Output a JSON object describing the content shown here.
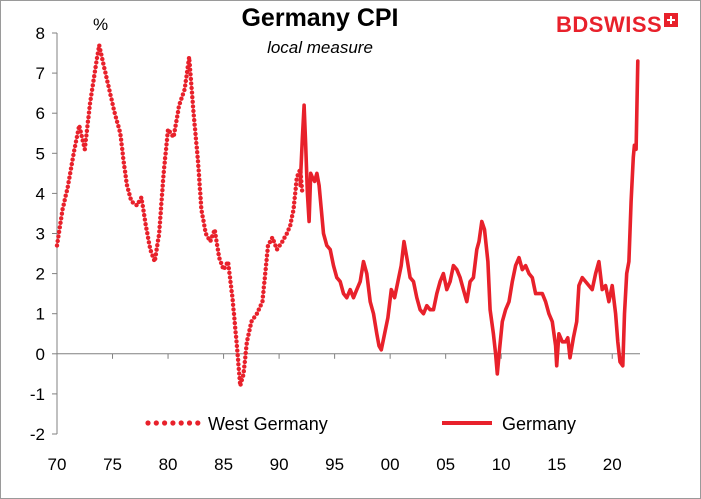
{
  "chart_data": {
    "type": "line",
    "title": "Germany CPI",
    "subtitle": "local measure",
    "ylabel": "%",
    "xlabel": "",
    "xlim": [
      1970,
      2022.5
    ],
    "ylim": [
      -2,
      8
    ],
    "x_ticks": [
      1970,
      1975,
      1980,
      1985,
      1990,
      1995,
      2000,
      2005,
      2010,
      2015,
      2020
    ],
    "x_tick_labels": [
      "70",
      "75",
      "80",
      "85",
      "90",
      "95",
      "00",
      "05",
      "10",
      "15",
      "20"
    ],
    "y_ticks": [
      -2,
      -1,
      0,
      1,
      2,
      3,
      4,
      5,
      6,
      7,
      8
    ],
    "y_tick_labels": [
      "-2",
      "-1",
      "0",
      "1",
      "2",
      "3",
      "4",
      "5",
      "6",
      "7",
      "8"
    ],
    "legend_position": "bottom",
    "series": [
      {
        "name": "West Germany",
        "style": "dotted",
        "color": "#e8212b",
        "points": [
          [
            1970.0,
            2.7
          ],
          [
            1970.5,
            3.6
          ],
          [
            1971.0,
            4.2
          ],
          [
            1971.5,
            5.0
          ],
          [
            1972.0,
            5.7
          ],
          [
            1972.5,
            5.1
          ],
          [
            1973.0,
            6.3
          ],
          [
            1973.5,
            7.2
          ],
          [
            1973.8,
            7.7
          ],
          [
            1974.2,
            7.2
          ],
          [
            1974.7,
            6.6
          ],
          [
            1975.2,
            6.0
          ],
          [
            1975.7,
            5.5
          ],
          [
            1976.0,
            4.8
          ],
          [
            1976.3,
            4.2
          ],
          [
            1976.7,
            3.8
          ],
          [
            1977.2,
            3.7
          ],
          [
            1977.6,
            3.9
          ],
          [
            1978.0,
            3.2
          ],
          [
            1978.4,
            2.6
          ],
          [
            1978.8,
            2.3
          ],
          [
            1979.2,
            3.0
          ],
          [
            1979.6,
            4.5
          ],
          [
            1980.0,
            5.6
          ],
          [
            1980.5,
            5.4
          ],
          [
            1981.0,
            6.2
          ],
          [
            1981.5,
            6.6
          ],
          [
            1981.9,
            7.4
          ],
          [
            1982.3,
            6.0
          ],
          [
            1982.7,
            4.8
          ],
          [
            1983.0,
            3.6
          ],
          [
            1983.4,
            3.0
          ],
          [
            1983.8,
            2.8
          ],
          [
            1984.2,
            3.1
          ],
          [
            1984.6,
            2.4
          ],
          [
            1985.0,
            2.1
          ],
          [
            1985.4,
            2.3
          ],
          [
            1985.8,
            1.4
          ],
          [
            1986.2,
            0.2
          ],
          [
            1986.5,
            -0.8
          ],
          [
            1986.8,
            -0.5
          ],
          [
            1987.1,
            0.3
          ],
          [
            1987.5,
            0.8
          ],
          [
            1988.0,
            1.0
          ],
          [
            1988.5,
            1.3
          ],
          [
            1989.0,
            2.7
          ],
          [
            1989.4,
            2.9
          ],
          [
            1989.8,
            2.6
          ],
          [
            1990.3,
            2.8
          ],
          [
            1990.7,
            3.0
          ],
          [
            1991.0,
            3.2
          ],
          [
            1991.3,
            3.6
          ],
          [
            1991.6,
            4.4
          ],
          [
            1991.9,
            4.6
          ],
          [
            1992.1,
            4.0
          ]
        ]
      },
      {
        "name": "Germany",
        "style": "solid",
        "color": "#e8212b",
        "points": [
          [
            1991.9,
            4.2
          ],
          [
            1992.1,
            5.4
          ],
          [
            1992.25,
            6.2
          ],
          [
            1992.4,
            5.2
          ],
          [
            1992.55,
            4.0
          ],
          [
            1992.7,
            3.3
          ],
          [
            1992.85,
            4.5
          ],
          [
            1993.0,
            4.4
          ],
          [
            1993.2,
            4.3
          ],
          [
            1993.4,
            4.5
          ],
          [
            1993.6,
            4.2
          ],
          [
            1993.8,
            3.6
          ],
          [
            1994.0,
            3.0
          ],
          [
            1994.3,
            2.7
          ],
          [
            1994.6,
            2.6
          ],
          [
            1994.9,
            2.2
          ],
          [
            1995.2,
            1.9
          ],
          [
            1995.5,
            1.8
          ],
          [
            1995.8,
            1.5
          ],
          [
            1996.1,
            1.4
          ],
          [
            1996.4,
            1.6
          ],
          [
            1996.7,
            1.4
          ],
          [
            1997.0,
            1.6
          ],
          [
            1997.3,
            1.8
          ],
          [
            1997.6,
            2.3
          ],
          [
            1997.9,
            2.0
          ],
          [
            1998.2,
            1.3
          ],
          [
            1998.5,
            1.0
          ],
          [
            1998.8,
            0.5
          ],
          [
            1999.0,
            0.2
          ],
          [
            1999.2,
            0.1
          ],
          [
            1999.5,
            0.5
          ],
          [
            1999.8,
            0.9
          ],
          [
            2000.1,
            1.6
          ],
          [
            2000.4,
            1.4
          ],
          [
            2000.7,
            1.8
          ],
          [
            2001.0,
            2.2
          ],
          [
            2001.25,
            2.8
          ],
          [
            2001.5,
            2.4
          ],
          [
            2001.8,
            1.9
          ],
          [
            2002.1,
            1.8
          ],
          [
            2002.4,
            1.4
          ],
          [
            2002.7,
            1.1
          ],
          [
            2003.0,
            1.0
          ],
          [
            2003.3,
            1.2
          ],
          [
            2003.6,
            1.1
          ],
          [
            2003.9,
            1.1
          ],
          [
            2004.2,
            1.5
          ],
          [
            2004.5,
            1.8
          ],
          [
            2004.8,
            2.0
          ],
          [
            2005.1,
            1.6
          ],
          [
            2005.4,
            1.8
          ],
          [
            2005.7,
            2.2
          ],
          [
            2006.0,
            2.1
          ],
          [
            2006.3,
            1.9
          ],
          [
            2006.6,
            1.6
          ],
          [
            2006.9,
            1.3
          ],
          [
            2007.2,
            1.8
          ],
          [
            2007.5,
            1.9
          ],
          [
            2007.8,
            2.6
          ],
          [
            2008.0,
            2.8
          ],
          [
            2008.25,
            3.3
          ],
          [
            2008.5,
            3.1
          ],
          [
            2008.8,
            2.3
          ],
          [
            2009.0,
            1.1
          ],
          [
            2009.3,
            0.5
          ],
          [
            2009.5,
            0.0
          ],
          [
            2009.65,
            -0.5
          ],
          [
            2009.85,
            0.1
          ],
          [
            2010.1,
            0.8
          ],
          [
            2010.4,
            1.1
          ],
          [
            2010.7,
            1.3
          ],
          [
            2011.0,
            1.8
          ],
          [
            2011.3,
            2.2
          ],
          [
            2011.6,
            2.4
          ],
          [
            2011.9,
            2.1
          ],
          [
            2012.2,
            2.2
          ],
          [
            2012.5,
            2.0
          ],
          [
            2012.8,
            1.9
          ],
          [
            2013.1,
            1.5
          ],
          [
            2013.4,
            1.5
          ],
          [
            2013.7,
            1.5
          ],
          [
            2014.0,
            1.3
          ],
          [
            2014.3,
            1.0
          ],
          [
            2014.6,
            0.8
          ],
          [
            2014.9,
            0.2
          ],
          [
            2015.0,
            -0.3
          ],
          [
            2015.2,
            0.5
          ],
          [
            2015.5,
            0.3
          ],
          [
            2015.8,
            0.3
          ],
          [
            2016.0,
            0.4
          ],
          [
            2016.2,
            -0.1
          ],
          [
            2016.5,
            0.4
          ],
          [
            2016.8,
            0.8
          ],
          [
            2017.0,
            1.7
          ],
          [
            2017.3,
            1.9
          ],
          [
            2017.6,
            1.8
          ],
          [
            2017.9,
            1.7
          ],
          [
            2018.2,
            1.6
          ],
          [
            2018.5,
            2.0
          ],
          [
            2018.8,
            2.3
          ],
          [
            2019.1,
            1.6
          ],
          [
            2019.4,
            1.7
          ],
          [
            2019.7,
            1.3
          ],
          [
            2020.0,
            1.7
          ],
          [
            2020.3,
            1.0
          ],
          [
            2020.5,
            0.3
          ],
          [
            2020.7,
            -0.2
          ],
          [
            2020.95,
            -0.3
          ],
          [
            2021.1,
            1.0
          ],
          [
            2021.3,
            2.0
          ],
          [
            2021.5,
            2.3
          ],
          [
            2021.7,
            3.8
          ],
          [
            2021.9,
            4.9
          ],
          [
            2022.0,
            5.2
          ],
          [
            2022.15,
            5.1
          ],
          [
            2022.3,
            7.3
          ]
        ]
      }
    ]
  },
  "logo": {
    "text": "BDSWISS"
  }
}
